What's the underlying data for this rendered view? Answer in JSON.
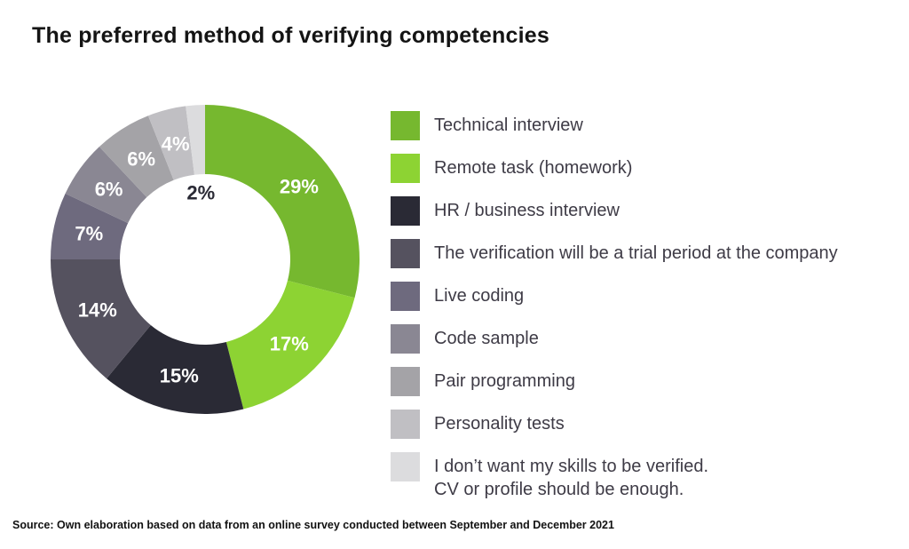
{
  "title": "The preferred method of verifying competencies",
  "source": "Source: Own elaboration based on data from an online survey conducted between September and December 2021",
  "colors": {
    "background": "#ffffff",
    "title_text": "#141414",
    "legend_text": "#3e3b46",
    "slice_label": "#ffffff",
    "inside_hole_label": "#2a2a35"
  },
  "chart_data": {
    "type": "pie",
    "variant": "donut",
    "title": "The preferred method of verifying competencies",
    "start_angle_deg": 0,
    "direction": "clockwise",
    "hole_ratio": 0.55,
    "legend_position": "right",
    "slice_label_format": "percent",
    "slice_label_color": "#ffffff",
    "inside_hole_label_color": "#2a2a35",
    "series": [
      {
        "label": "Technical interview",
        "value": 29,
        "color": "#76b82f"
      },
      {
        "label": "Remote task (homework)",
        "value": 17,
        "color": "#8dd333"
      },
      {
        "label": "HR / business interview",
        "value": 15,
        "color": "#2a2a35"
      },
      {
        "label": "The verification will be a trial period at the company",
        "value": 14,
        "color": "#55525f"
      },
      {
        "label": "Live coding",
        "value": 7,
        "color": "#6e6a7e"
      },
      {
        "label": "Code sample",
        "value": 6,
        "color": "#8a8793"
      },
      {
        "label": "Pair programming",
        "value": 6,
        "color": "#a4a3a7"
      },
      {
        "label": "Personality tests",
        "value": 4,
        "color": "#c0bfc3"
      },
      {
        "label": "I don’t want my skills to be verified.\nCV or profile should be enough.",
        "value": 2,
        "color": "#dcdcde",
        "label_inside_hole": true
      }
    ]
  }
}
